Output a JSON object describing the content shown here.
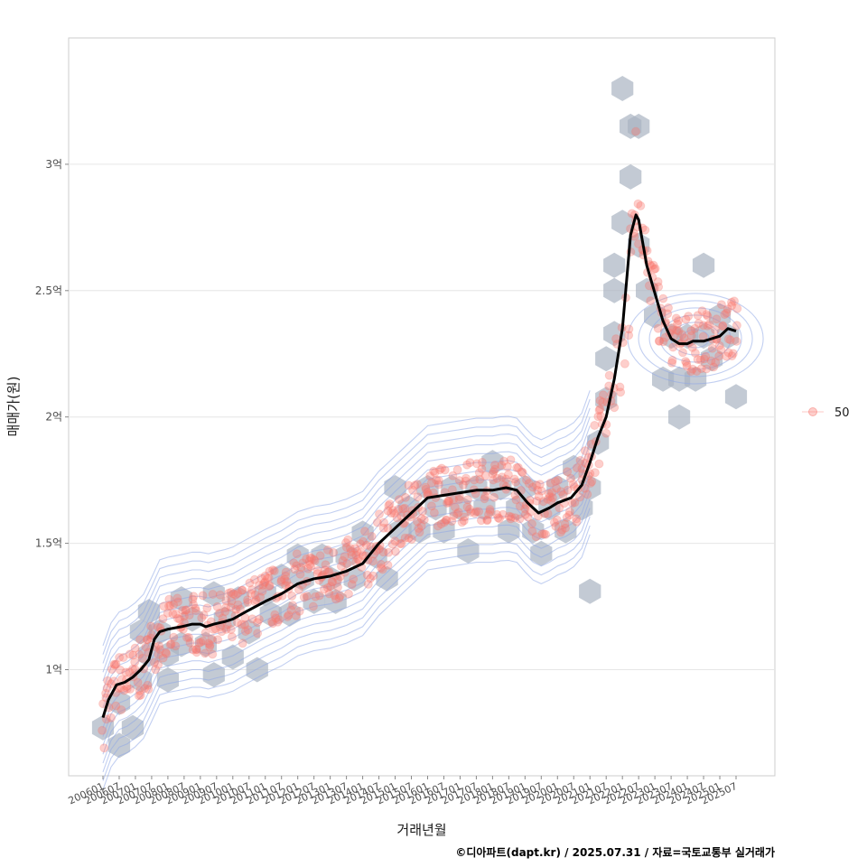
{
  "chart_data": {
    "type": "scatter",
    "xlabel": "거래년월",
    "ylabel": "매매가(원)",
    "caption": "©디아파트(dapt.kr) / 2025.07.31 / 자료=국토교통부 실거래가",
    "x_range": [
      "2006-01",
      "2025-07"
    ],
    "ylim": [
      0.58,
      3.5
    ],
    "y_ticks": [
      {
        "value": 1.0,
        "label": "1억"
      },
      {
        "value": 1.5,
        "label": "1.5억"
      },
      {
        "value": 2.0,
        "label": "2억"
      },
      {
        "value": 2.5,
        "label": "2.5억"
      },
      {
        "value": 3.0,
        "label": "3억"
      }
    ],
    "x_ticks": [
      "200601",
      "200607",
      "200701",
      "200707",
      "200801",
      "200807",
      "200901",
      "200907",
      "201001",
      "201007",
      "201101",
      "201107",
      "201201",
      "201207",
      "201301",
      "201307",
      "201401",
      "201407",
      "201501",
      "201507",
      "201601",
      "201607",
      "201701",
      "201707",
      "201801",
      "201807",
      "201901",
      "201907",
      "202001",
      "202007",
      "202101",
      "202107",
      "202201",
      "202207",
      "202301",
      "202307",
      "202401",
      "202407",
      "202501",
      "202507"
    ],
    "legend": {
      "label": "50",
      "placement": "right"
    },
    "grid": true,
    "colors": {
      "points": "#f8766d",
      "hex": "#a9b4c2",
      "contour": "#8fa8e6",
      "trend": "#000000"
    },
    "trend": [
      {
        "x": "2006-01",
        "y": 0.81
      },
      {
        "x": "2006-03",
        "y": 0.88
      },
      {
        "x": "2006-06",
        "y": 0.94
      },
      {
        "x": "2006-09",
        "y": 0.95
      },
      {
        "x": "2006-12",
        "y": 0.97
      },
      {
        "x": "2007-03",
        "y": 1.0
      },
      {
        "x": "2007-06",
        "y": 1.04
      },
      {
        "x": "2007-08",
        "y": 1.12
      },
      {
        "x": "2007-10",
        "y": 1.15
      },
      {
        "x": "2008-01",
        "y": 1.16
      },
      {
        "x": "2008-06",
        "y": 1.17
      },
      {
        "x": "2008-10",
        "y": 1.18
      },
      {
        "x": "2009-01",
        "y": 1.18
      },
      {
        "x": "2009-03",
        "y": 1.17
      },
      {
        "x": "2009-06",
        "y": 1.18
      },
      {
        "x": "2009-10",
        "y": 1.19
      },
      {
        "x": "2010-01",
        "y": 1.2
      },
      {
        "x": "2010-06",
        "y": 1.23
      },
      {
        "x": "2011-01",
        "y": 1.27
      },
      {
        "x": "2011-07",
        "y": 1.3
      },
      {
        "x": "2012-01",
        "y": 1.34
      },
      {
        "x": "2012-07",
        "y": 1.36
      },
      {
        "x": "2013-01",
        "y": 1.37
      },
      {
        "x": "2013-07",
        "y": 1.39
      },
      {
        "x": "2014-01",
        "y": 1.42
      },
      {
        "x": "2014-07",
        "y": 1.5
      },
      {
        "x": "2015-01",
        "y": 1.56
      },
      {
        "x": "2015-07",
        "y": 1.62
      },
      {
        "x": "2016-01",
        "y": 1.68
      },
      {
        "x": "2016-07",
        "y": 1.69
      },
      {
        "x": "2017-01",
        "y": 1.7
      },
      {
        "x": "2017-07",
        "y": 1.71
      },
      {
        "x": "2018-01",
        "y": 1.71
      },
      {
        "x": "2018-06",
        "y": 1.72
      },
      {
        "x": "2018-10",
        "y": 1.71
      },
      {
        "x": "2019-02",
        "y": 1.66
      },
      {
        "x": "2019-06",
        "y": 1.62
      },
      {
        "x": "2019-10",
        "y": 1.64
      },
      {
        "x": "2020-01",
        "y": 1.66
      },
      {
        "x": "2020-06",
        "y": 1.68
      },
      {
        "x": "2020-10",
        "y": 1.73
      },
      {
        "x": "2021-01",
        "y": 1.82
      },
      {
        "x": "2021-04",
        "y": 1.92
      },
      {
        "x": "2021-07",
        "y": 2.0
      },
      {
        "x": "2021-10",
        "y": 2.15
      },
      {
        "x": "2022-01",
        "y": 2.35
      },
      {
        "x": "2022-04",
        "y": 2.72
      },
      {
        "x": "2022-06",
        "y": 2.8
      },
      {
        "x": "2022-07",
        "y": 2.78
      },
      {
        "x": "2022-10",
        "y": 2.6
      },
      {
        "x": "2023-01",
        "y": 2.49
      },
      {
        "x": "2023-04",
        "y": 2.38
      },
      {
        "x": "2023-07",
        "y": 2.31
      },
      {
        "x": "2023-10",
        "y": 2.29
      },
      {
        "x": "2024-01",
        "y": 2.29
      },
      {
        "x": "2024-03",
        "y": 2.3
      },
      {
        "x": "2024-07",
        "y": 2.3
      },
      {
        "x": "2024-10",
        "y": 2.31
      },
      {
        "x": "2025-01",
        "y": 2.32
      },
      {
        "x": "2025-04",
        "y": 2.35
      },
      {
        "x": "2025-07",
        "y": 2.34
      }
    ],
    "hex_centers": [
      {
        "x": "2006-01",
        "y": 0.77
      },
      {
        "x": "2006-07",
        "y": 0.87
      },
      {
        "x": "2006-07",
        "y": 0.7
      },
      {
        "x": "2006-12",
        "y": 0.77
      },
      {
        "x": "2007-03",
        "y": 0.96
      },
      {
        "x": "2007-06",
        "y": 1.06
      },
      {
        "x": "2007-03",
        "y": 1.15
      },
      {
        "x": "2007-06",
        "y": 1.23
      },
      {
        "x": "2007-10",
        "y": 1.15
      },
      {
        "x": "2008-01",
        "y": 1.06
      },
      {
        "x": "2008-01",
        "y": 0.96
      },
      {
        "x": "2008-06",
        "y": 1.28
      },
      {
        "x": "2008-06",
        "y": 1.1
      },
      {
        "x": "2008-10",
        "y": 1.2
      },
      {
        "x": "2009-03",
        "y": 1.1
      },
      {
        "x": "2009-06",
        "y": 1.3
      },
      {
        "x": "2009-06",
        "y": 0.98
      },
      {
        "x": "2009-10",
        "y": 1.2
      },
      {
        "x": "2010-01",
        "y": 1.05
      },
      {
        "x": "2010-03",
        "y": 1.28
      },
      {
        "x": "2010-07",
        "y": 1.15
      },
      {
        "x": "2010-10",
        "y": 1.0
      },
      {
        "x": "2011-01",
        "y": 1.3
      },
      {
        "x": "2011-03",
        "y": 1.22
      },
      {
        "x": "2011-07",
        "y": 1.37
      },
      {
        "x": "2011-10",
        "y": 1.22
      },
      {
        "x": "2012-01",
        "y": 1.45
      },
      {
        "x": "2012-03",
        "y": 1.36
      },
      {
        "x": "2012-07",
        "y": 1.27
      },
      {
        "x": "2012-10",
        "y": 1.45
      },
      {
        "x": "2013-01",
        "y": 1.36
      },
      {
        "x": "2013-03",
        "y": 1.27
      },
      {
        "x": "2013-07",
        "y": 1.45
      },
      {
        "x": "2013-10",
        "y": 1.36
      },
      {
        "x": "2014-01",
        "y": 1.54
      },
      {
        "x": "2014-06",
        "y": 1.45
      },
      {
        "x": "2014-10",
        "y": 1.36
      },
      {
        "x": "2015-01",
        "y": 1.72
      },
      {
        "x": "2015-03",
        "y": 1.55
      },
      {
        "x": "2015-06",
        "y": 1.64
      },
      {
        "x": "2015-10",
        "y": 1.55
      },
      {
        "x": "2016-01",
        "y": 1.72
      },
      {
        "x": "2016-04",
        "y": 1.64
      },
      {
        "x": "2016-07",
        "y": 1.55
      },
      {
        "x": "2016-10",
        "y": 1.72
      },
      {
        "x": "2017-01",
        "y": 1.64
      },
      {
        "x": "2017-04",
        "y": 1.47
      },
      {
        "x": "2017-07",
        "y": 1.72
      },
      {
        "x": "2017-10",
        "y": 1.64
      },
      {
        "x": "2018-01",
        "y": 1.82
      },
      {
        "x": "2018-04",
        "y": 1.72
      },
      {
        "x": "2018-07",
        "y": 1.55
      },
      {
        "x": "2018-10",
        "y": 1.64
      },
      {
        "x": "2019-01",
        "y": 1.72
      },
      {
        "x": "2019-04",
        "y": 1.55
      },
      {
        "x": "2019-07",
        "y": 1.46
      },
      {
        "x": "2019-10",
        "y": 1.64
      },
      {
        "x": "2020-01",
        "y": 1.72
      },
      {
        "x": "2020-04",
        "y": 1.55
      },
      {
        "x": "2020-07",
        "y": 1.8
      },
      {
        "x": "2020-10",
        "y": 1.64
      },
      {
        "x": "2021-01",
        "y": 1.72
      },
      {
        "x": "2021-01",
        "y": 1.31
      },
      {
        "x": "2021-04",
        "y": 1.9
      },
      {
        "x": "2021-07",
        "y": 2.07
      },
      {
        "x": "2021-07",
        "y": 2.23
      },
      {
        "x": "2021-10",
        "y": 2.33
      },
      {
        "x": "2021-10",
        "y": 2.5
      },
      {
        "x": "2021-10",
        "y": 2.6
      },
      {
        "x": "2022-01",
        "y": 2.77
      },
      {
        "x": "2022-04",
        "y": 2.95
      },
      {
        "x": "2022-04",
        "y": 3.15
      },
      {
        "x": "2022-01",
        "y": 3.3
      },
      {
        "x": "2022-07",
        "y": 3.15
      },
      {
        "x": "2022-07",
        "y": 2.68
      },
      {
        "x": "2022-10",
        "y": 2.5
      },
      {
        "x": "2023-01",
        "y": 2.4
      },
      {
        "x": "2023-04",
        "y": 2.15
      },
      {
        "x": "2023-07",
        "y": 2.32
      },
      {
        "x": "2023-10",
        "y": 2.15
      },
      {
        "x": "2023-10",
        "y": 2.0
      },
      {
        "x": "2024-01",
        "y": 2.32
      },
      {
        "x": "2024-04",
        "y": 2.15
      },
      {
        "x": "2024-07",
        "y": 2.32
      },
      {
        "x": "2024-07",
        "y": 2.6
      },
      {
        "x": "2024-10",
        "y": 2.23
      },
      {
        "x": "2025-01",
        "y": 2.4
      },
      {
        "x": "2025-04",
        "y": 2.32
      },
      {
        "x": "2025-07",
        "y": 2.08
      }
    ]
  }
}
